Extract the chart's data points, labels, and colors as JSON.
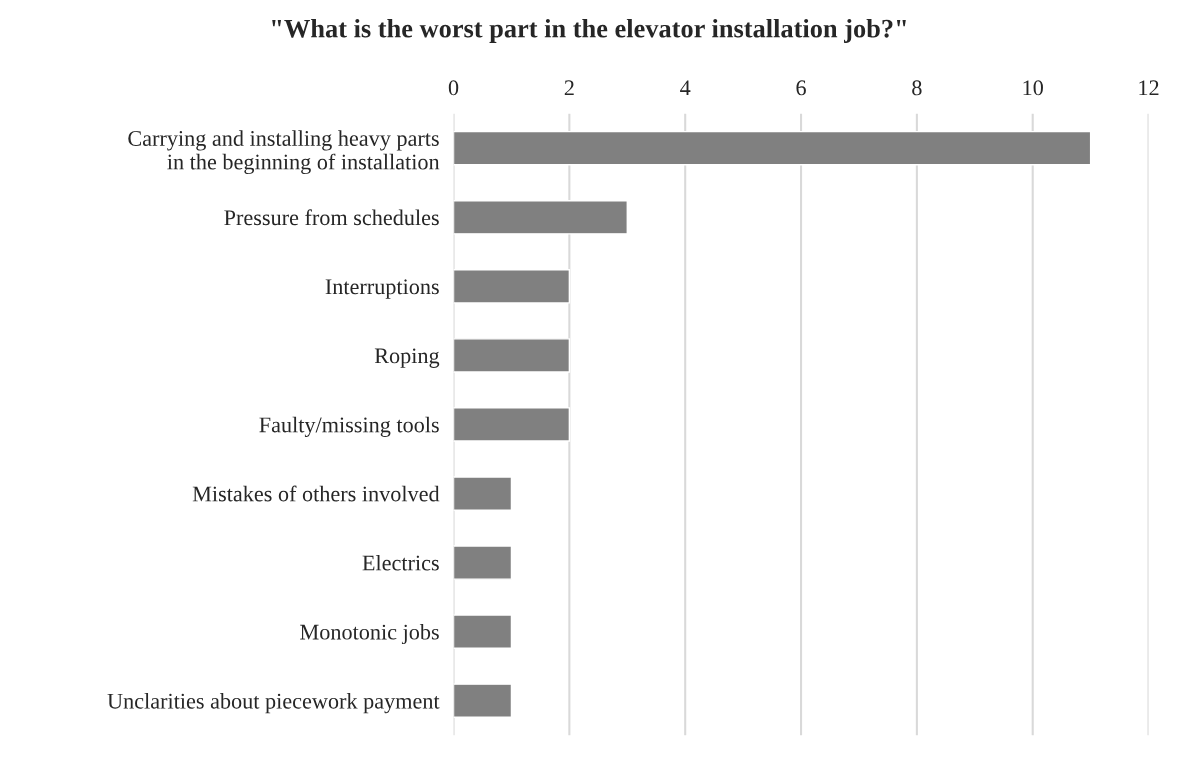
{
  "chart_data": {
    "type": "bar",
    "orientation": "horizontal",
    "title": "\"What is the worst part in the elevator installation job?\"",
    "categories": [
      "Carrying and installing heavy parts\nin the beginning of installation",
      "Pressure from schedules",
      "Interruptions",
      "Roping",
      "Faulty/missing tools",
      "Mistakes of others involved",
      "Electrics",
      "Monotonic jobs",
      "Unclarities about piecework payment"
    ],
    "values": [
      11,
      3,
      2,
      2,
      2,
      1,
      1,
      1,
      1
    ],
    "color": "#808080",
    "xlim": [
      0,
      12
    ],
    "xticks": [
      0,
      2,
      4,
      6,
      8,
      10,
      12
    ],
    "grid": "x"
  }
}
